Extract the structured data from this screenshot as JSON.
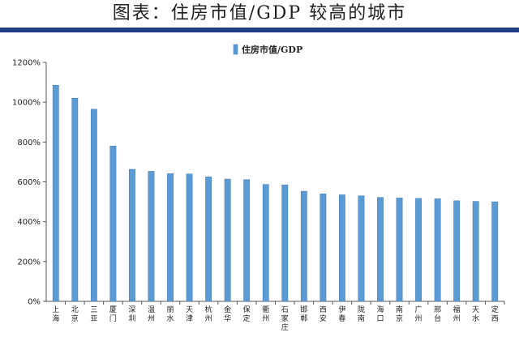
{
  "header": {
    "title": "图表：住房市值/GDP 较高的城市"
  },
  "chart_data": {
    "type": "bar",
    "title": "",
    "xlabel": "",
    "ylabel": "",
    "ylim": [
      0,
      1200
    ],
    "y_tick_format": "percent",
    "y_ticks": [
      "0%",
      "200%",
      "400%",
      "600%",
      "800%",
      "1000%",
      "1200%"
    ],
    "grid": false,
    "legend": "top-center",
    "categories": [
      "上海",
      "北京",
      "三亚",
      "厦门",
      "深圳",
      "温州",
      "丽水",
      "天津",
      "杭州",
      "金华",
      "保定",
      "衢州",
      "石家庄",
      "邯郸",
      "西安",
      "伊春",
      "陇南",
      "海口",
      "南京",
      "广州",
      "邢台",
      "福州",
      "天水",
      "定西"
    ],
    "series": [
      {
        "name": "住房市值/GDP",
        "color": "#5b9bd5",
        "values": [
          1085,
          1020,
          965,
          780,
          663,
          653,
          641,
          640,
          625,
          614,
          611,
          587,
          585,
          553,
          540,
          535,
          530,
          522,
          519,
          517,
          515,
          505,
          502,
          500
        ]
      }
    ]
  }
}
